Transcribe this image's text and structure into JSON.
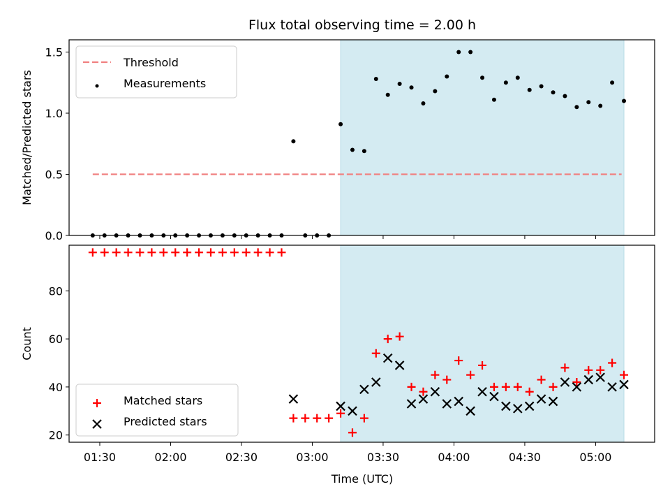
{
  "chart_data": {
    "title": "Flux total observing time = 2.00 h",
    "x_axis": {
      "label": "Time (UTC)",
      "range": [
        "01:17",
        "05:25"
      ],
      "ticks": [
        "01:30",
        "02:00",
        "02:30",
        "03:00",
        "03:30",
        "04:00",
        "04:30",
        "05:00"
      ]
    },
    "highlight_span": {
      "start": "03:12",
      "end": "05:12",
      "color": "#d4ebf2"
    },
    "panels": [
      {
        "type": "scatter",
        "ylabel": "Matched/Predicted stars",
        "ylim": [
          0,
          1.6
        ],
        "yticks": [
          "0.0",
          "0.5",
          "1.0",
          "1.5"
        ],
        "legend_position": "top-left",
        "series": [
          {
            "name": "Threshold",
            "kind": "dashed-line",
            "color": "#f08080",
            "points": [
              {
                "t": "01:27",
                "y": 0.5
              },
              {
                "t": "05:11",
                "y": 0.5
              }
            ]
          },
          {
            "name": "Measurements",
            "kind": "dot",
            "color": "#000000",
            "points": [
              {
                "t": "01:27",
                "y": 0
              },
              {
                "t": "01:32",
                "y": 0
              },
              {
                "t": "01:37",
                "y": 0
              },
              {
                "t": "01:42",
                "y": 0
              },
              {
                "t": "01:47",
                "y": 0
              },
              {
                "t": "01:52",
                "y": 0
              },
              {
                "t": "01:57",
                "y": 0
              },
              {
                "t": "02:02",
                "y": 0
              },
              {
                "t": "02:07",
                "y": 0
              },
              {
                "t": "02:12",
                "y": 0
              },
              {
                "t": "02:17",
                "y": 0
              },
              {
                "t": "02:22",
                "y": 0
              },
              {
                "t": "02:27",
                "y": 0
              },
              {
                "t": "02:32",
                "y": 0
              },
              {
                "t": "02:37",
                "y": 0
              },
              {
                "t": "02:42",
                "y": 0
              },
              {
                "t": "02:47",
                "y": 0
              },
              {
                "t": "02:52",
                "y": 0.77
              },
              {
                "t": "02:57",
                "y": 0
              },
              {
                "t": "03:02",
                "y": 0
              },
              {
                "t": "03:07",
                "y": 0
              },
              {
                "t": "03:12",
                "y": 0.91
              },
              {
                "t": "03:17",
                "y": 0.7
              },
              {
                "t": "03:22",
                "y": 0.69
              },
              {
                "t": "03:27",
                "y": 1.28
              },
              {
                "t": "03:32",
                "y": 1.15
              },
              {
                "t": "03:37",
                "y": 1.24
              },
              {
                "t": "03:42",
                "y": 1.21
              },
              {
                "t": "03:47",
                "y": 1.08
              },
              {
                "t": "03:52",
                "y": 1.18
              },
              {
                "t": "03:57",
                "y": 1.3
              },
              {
                "t": "04:02",
                "y": 1.5
              },
              {
                "t": "04:07",
                "y": 1.5
              },
              {
                "t": "04:12",
                "y": 1.29
              },
              {
                "t": "04:17",
                "y": 1.11
              },
              {
                "t": "04:22",
                "y": 1.25
              },
              {
                "t": "04:27",
                "y": 1.29
              },
              {
                "t": "04:32",
                "y": 1.19
              },
              {
                "t": "04:37",
                "y": 1.22
              },
              {
                "t": "04:42",
                "y": 1.17
              },
              {
                "t": "04:47",
                "y": 1.14
              },
              {
                "t": "04:52",
                "y": 1.05
              },
              {
                "t": "04:57",
                "y": 1.09
              },
              {
                "t": "05:02",
                "y": 1.06
              },
              {
                "t": "05:07",
                "y": 1.25
              },
              {
                "t": "05:12",
                "y": 1.1
              }
            ]
          }
        ]
      },
      {
        "type": "scatter",
        "ylabel": "Count",
        "ylim": [
          17,
          99
        ],
        "yticks": [
          "20",
          "40",
          "60",
          "80"
        ],
        "legend_position": "bottom-left",
        "series": [
          {
            "name": "Matched stars",
            "kind": "plus",
            "color": "#ff0000",
            "points": [
              {
                "t": "01:27",
                "y": 96
              },
              {
                "t": "01:32",
                "y": 96
              },
              {
                "t": "01:37",
                "y": 96
              },
              {
                "t": "01:42",
                "y": 96
              },
              {
                "t": "01:47",
                "y": 96
              },
              {
                "t": "01:52",
                "y": 96
              },
              {
                "t": "01:57",
                "y": 96
              },
              {
                "t": "02:02",
                "y": 96
              },
              {
                "t": "02:07",
                "y": 96
              },
              {
                "t": "02:12",
                "y": 96
              },
              {
                "t": "02:17",
                "y": 96
              },
              {
                "t": "02:22",
                "y": 96
              },
              {
                "t": "02:27",
                "y": 96
              },
              {
                "t": "02:32",
                "y": 96
              },
              {
                "t": "02:37",
                "y": 96
              },
              {
                "t": "02:42",
                "y": 96
              },
              {
                "t": "02:47",
                "y": 96
              },
              {
                "t": "02:52",
                "y": 27
              },
              {
                "t": "02:57",
                "y": 27
              },
              {
                "t": "03:02",
                "y": 27
              },
              {
                "t": "03:07",
                "y": 27
              },
              {
                "t": "03:12",
                "y": 29
              },
              {
                "t": "03:17",
                "y": 21
              },
              {
                "t": "03:22",
                "y": 27
              },
              {
                "t": "03:27",
                "y": 54
              },
              {
                "t": "03:32",
                "y": 60
              },
              {
                "t": "03:37",
                "y": 61
              },
              {
                "t": "03:42",
                "y": 40
              },
              {
                "t": "03:47",
                "y": 38
              },
              {
                "t": "03:52",
                "y": 45
              },
              {
                "t": "03:57",
                "y": 43
              },
              {
                "t": "04:02",
                "y": 51
              },
              {
                "t": "04:07",
                "y": 45
              },
              {
                "t": "04:12",
                "y": 49
              },
              {
                "t": "04:17",
                "y": 40
              },
              {
                "t": "04:22",
                "y": 40
              },
              {
                "t": "04:27",
                "y": 40
              },
              {
                "t": "04:32",
                "y": 38
              },
              {
                "t": "04:37",
                "y": 43
              },
              {
                "t": "04:42",
                "y": 40
              },
              {
                "t": "04:47",
                "y": 48
              },
              {
                "t": "04:52",
                "y": 42
              },
              {
                "t": "04:57",
                "y": 47
              },
              {
                "t": "05:02",
                "y": 47
              },
              {
                "t": "05:07",
                "y": 50
              },
              {
                "t": "05:12",
                "y": 45
              }
            ]
          },
          {
            "name": "Predicted stars",
            "kind": "cross",
            "color": "#000000",
            "points": [
              {
                "t": "02:52",
                "y": 35
              },
              {
                "t": "03:12",
                "y": 32
              },
              {
                "t": "03:17",
                "y": 30
              },
              {
                "t": "03:22",
                "y": 39
              },
              {
                "t": "03:27",
                "y": 42
              },
              {
                "t": "03:32",
                "y": 52
              },
              {
                "t": "03:37",
                "y": 49
              },
              {
                "t": "03:42",
                "y": 33
              },
              {
                "t": "03:47",
                "y": 35
              },
              {
                "t": "03:52",
                "y": 38
              },
              {
                "t": "03:57",
                "y": 33
              },
              {
                "t": "04:02",
                "y": 34
              },
              {
                "t": "04:07",
                "y": 30
              },
              {
                "t": "04:12",
                "y": 38
              },
              {
                "t": "04:17",
                "y": 36
              },
              {
                "t": "04:22",
                "y": 32
              },
              {
                "t": "04:27",
                "y": 31
              },
              {
                "t": "04:32",
                "y": 32
              },
              {
                "t": "04:37",
                "y": 35
              },
              {
                "t": "04:42",
                "y": 34
              },
              {
                "t": "04:47",
                "y": 42
              },
              {
                "t": "04:52",
                "y": 40
              },
              {
                "t": "04:57",
                "y": 43
              },
              {
                "t": "05:02",
                "y": 44
              },
              {
                "t": "05:07",
                "y": 40
              },
              {
                "t": "05:12",
                "y": 41
              }
            ]
          }
        ]
      }
    ]
  }
}
